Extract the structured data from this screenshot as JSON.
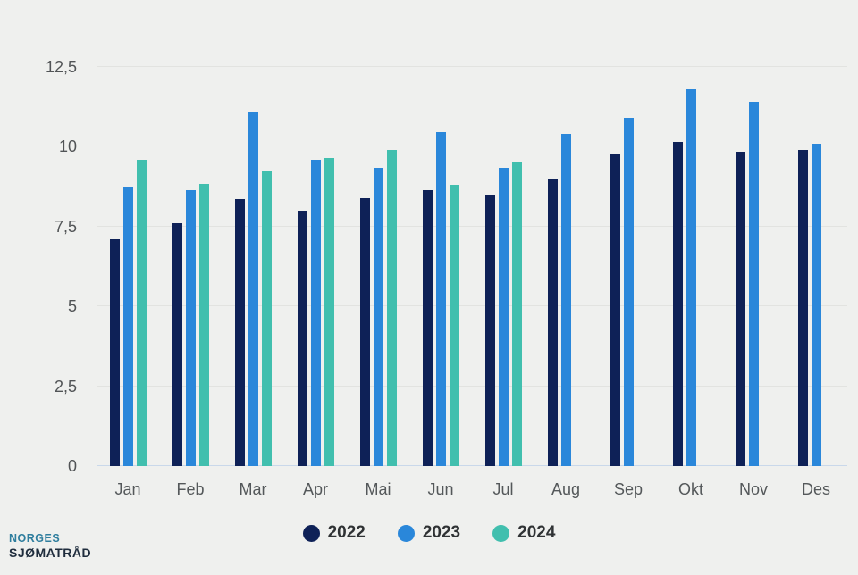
{
  "chart_data": {
    "type": "bar",
    "title": "",
    "xlabel": "",
    "ylabel": "",
    "categories": [
      "Jan",
      "Feb",
      "Mar",
      "Apr",
      "Mai",
      "Jun",
      "Jul",
      "Aug",
      "Sep",
      "Okt",
      "Nov",
      "Des"
    ],
    "series": [
      {
        "name": "2022",
        "color": "#0e2157",
        "values": [
          7.1,
          7.6,
          8.35,
          8.0,
          8.4,
          8.65,
          8.5,
          9.0,
          9.75,
          10.15,
          9.85,
          9.9
        ]
      },
      {
        "name": "2023",
        "color": "#2a87da",
        "values": [
          8.75,
          8.65,
          11.1,
          9.6,
          9.35,
          10.45,
          9.35,
          10.4,
          10.9,
          11.8,
          11.4,
          10.1
        ]
      },
      {
        "name": "2024",
        "color": "#41bfae",
        "values": [
          9.6,
          8.85,
          9.25,
          9.65,
          9.9,
          8.8,
          9.55,
          null,
          null,
          null,
          null,
          null
        ]
      }
    ],
    "ylim": [
      0,
      12.5
    ],
    "yticks": [
      {
        "value": 0,
        "label": "0"
      },
      {
        "value": 2.5,
        "label": "2,5"
      },
      {
        "value": 5,
        "label": "5"
      },
      {
        "value": 7.5,
        "label": "7,5"
      },
      {
        "value": 10,
        "label": "10"
      },
      {
        "value": 12.5,
        "label": "12,5"
      }
    ],
    "grid": true,
    "legend_position": "bottom"
  },
  "legend": {
    "items": [
      {
        "label": "2022",
        "color": "#0e2157"
      },
      {
        "label": "2023",
        "color": "#2a87da"
      },
      {
        "label": "2024",
        "color": "#41bfae"
      }
    ]
  },
  "logo": {
    "line1": "NORGES",
    "line2": "SJØMATRÅD"
  },
  "colors": {
    "background": "#eff0ee",
    "gridline": "#e2e3e0",
    "zero_line": "#c9d8ea",
    "axis_text": "#515456",
    "legend_text": "#2f3234"
  }
}
